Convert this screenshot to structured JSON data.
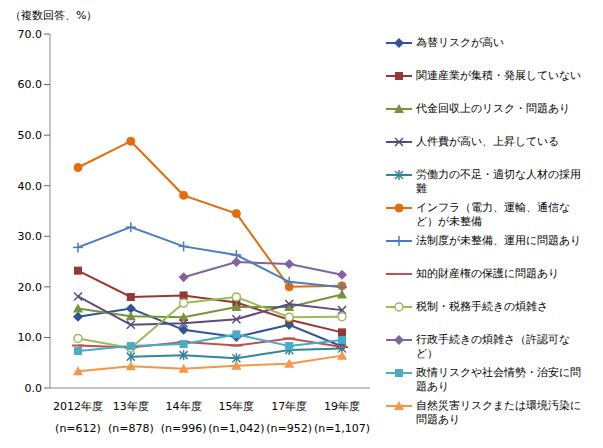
{
  "chart_data": {
    "type": "line",
    "y_label": "（複数回答、%）",
    "categories": [
      "2012年度\n(n=612)",
      "13年度\n(n=878)",
      "14年度\n(n=996)",
      "15年度\n(n=1,042)",
      "17年度\n(n=952)",
      "19年度\n(n=1,107)"
    ],
    "ylim": [
      0,
      70
    ],
    "yticks": [
      {
        "value": 0,
        "label": "0.0"
      },
      {
        "value": 10,
        "label": "10.0"
      },
      {
        "value": 20,
        "label": "20.0"
      },
      {
        "value": 30,
        "label": "30.0"
      },
      {
        "value": 40,
        "label": "40.0"
      },
      {
        "value": 50,
        "label": "50.0"
      },
      {
        "value": 60,
        "label": "60.0"
      },
      {
        "value": 70,
        "label": "70.0"
      }
    ],
    "grid": false,
    "legend": "right",
    "series": [
      {
        "name": "為替リスクが高い",
        "color": "#2F5597",
        "marker": "diamond",
        "values": [
          14.1,
          15.7,
          11.5,
          10.1,
          12.5,
          8.2
        ]
      },
      {
        "name": "関連産業が集積・発展していない",
        "color": "#953735",
        "marker": "square",
        "values": [
          23.2,
          18.0,
          18.3,
          16.9,
          13.5,
          11.0
        ]
      },
      {
        "name": "代金回収上のリスク・問題あり",
        "color": "#77933C",
        "marker": "triangle",
        "values": [
          15.7,
          14.2,
          14.0,
          16.0,
          16.0,
          18.5
        ]
      },
      {
        "name": "人件費が高い、上昇している",
        "color": "#5F497A",
        "marker": "x",
        "values": [
          18.1,
          12.5,
          12.8,
          13.6,
          16.6,
          15.4
        ]
      },
      {
        "name": "労働力の不足・適切な人材の採用難",
        "color": "#31859C",
        "marker": "star",
        "values": [
          null,
          6.2,
          6.5,
          5.9,
          7.5,
          7.8
        ]
      },
      {
        "name": "インフラ（電力、運輸、通信など）が未整備",
        "color": "#E46C0A",
        "marker": "circle",
        "values": [
          43.6,
          48.8,
          38.1,
          34.5,
          20.0,
          20.2
        ]
      },
      {
        "name": "法制度が未整備、運用に問題あり",
        "color": "#4A7EBB",
        "marker": "plus",
        "values": [
          27.8,
          31.8,
          28.0,
          26.3,
          21.0,
          19.9
        ]
      },
      {
        "name": "知的財産権の保護に問題あり",
        "color": "#C0504D",
        "marker": "dash",
        "values": [
          8.4,
          8.0,
          9.1,
          8.4,
          9.8,
          8.1
        ]
      },
      {
        "name": "税制・税務手続きの煩雑さ",
        "color": "#9BBB59",
        "marker": "open_circle",
        "values": [
          9.8,
          7.9,
          16.8,
          18.0,
          14.0,
          14.1
        ]
      },
      {
        "name": "行政手続きの煩雑さ（許認可など）",
        "color": "#8064A2",
        "marker": "diamond",
        "values": [
          null,
          null,
          21.9,
          24.9,
          24.5,
          22.4
        ]
      },
      {
        "name": "政情リスクや社会情勢・治安に問題あり",
        "color": "#4BACC6",
        "marker": "square",
        "values": [
          7.3,
          8.3,
          8.7,
          10.6,
          8.3,
          9.5
        ]
      },
      {
        "name": "自然災害リスクまたは環境汚染に問題あり",
        "color": "#F79646",
        "marker": "triangle",
        "values": [
          3.3,
          4.3,
          3.8,
          4.4,
          4.8,
          6.4
        ]
      }
    ]
  }
}
